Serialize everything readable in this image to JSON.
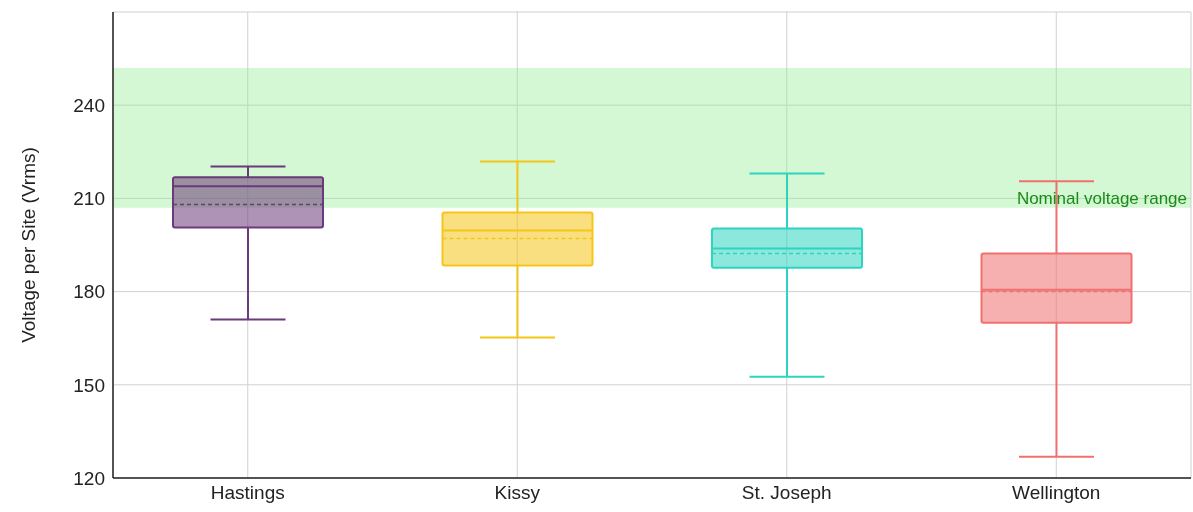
{
  "chart_data": {
    "type": "box",
    "ylabel": "Voltage per Site (Vrms)",
    "categories": [
      "Hastings",
      "Kissy",
      "St. Joseph",
      "Wellington"
    ],
    "boxes": [
      {
        "low": 171,
        "q1": 200.6,
        "median": 213.9,
        "q3": 216.8,
        "high": 220.3,
        "mean": 208
      },
      {
        "low": 165.2,
        "q1": 188.4,
        "median": 199.7,
        "q3": 205.5,
        "high": 221.9,
        "mean": 197.1
      },
      {
        "low": 152.6,
        "q1": 187.7,
        "median": 193.9,
        "q3": 200.3,
        "high": 218,
        "mean": 192.3
      },
      {
        "low": 126.8,
        "q1": 170,
        "median": 180.6,
        "q3": 192.3,
        "high": 215.5,
        "mean": 180
      }
    ],
    "colors": [
      "#6b3a7a",
      "#f5c518",
      "#2dd4bf",
      "#f07070"
    ],
    "ylim": [
      120,
      270
    ],
    "yticks": [
      120,
      150,
      180,
      210,
      240
    ],
    "grid": true,
    "bands": [
      {
        "axis": "y",
        "from": 207,
        "to": 252,
        "label": "Nominal voltage range",
        "color": "#90ee90"
      }
    ]
  }
}
